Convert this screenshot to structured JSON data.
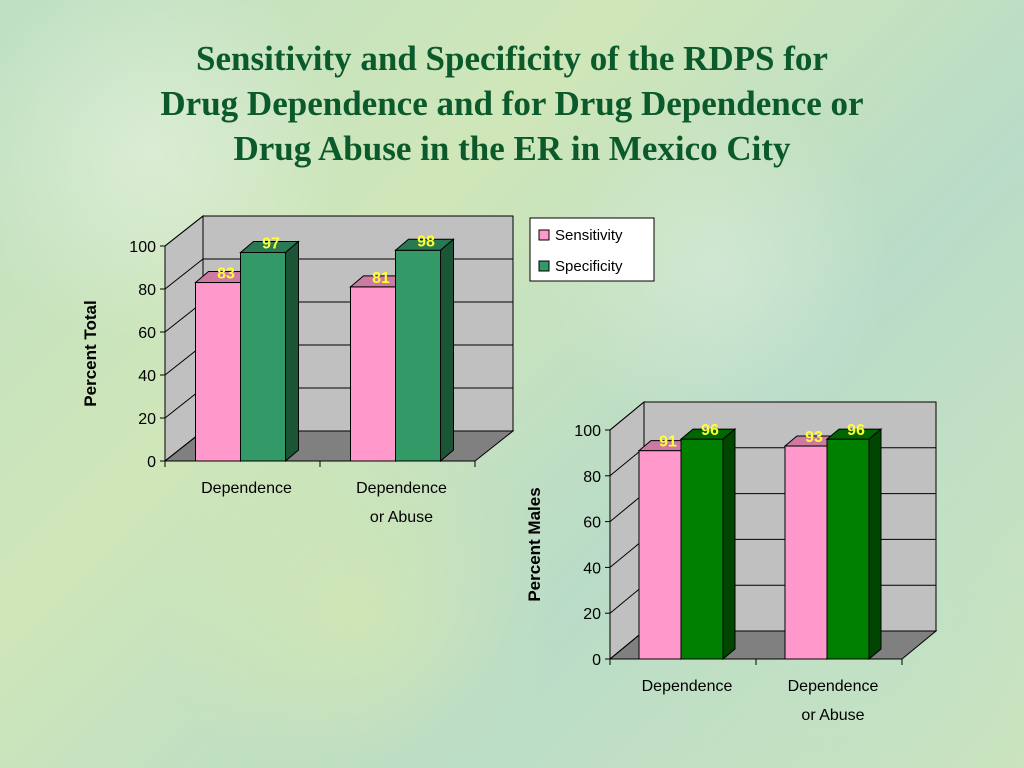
{
  "title": {
    "lines": [
      "Sensitivity and Specificity of the RDPS for",
      "Drug Dependence and for Drug Dependence or",
      "Drug Abuse in the ER in Mexico City"
    ]
  },
  "colors": {
    "sensitivity": "#ff99cc",
    "specificity_chart1": "#339966",
    "specificity_chart2": "#008000",
    "wall": "#c0c0c0",
    "floor": "#808080"
  },
  "chart_data": [
    {
      "type": "bar",
      "ylabel": "Percent Total",
      "categories": [
        [
          "Dependence"
        ],
        [
          "Dependence",
          "or Abuse"
        ]
      ],
      "yticks": [
        "0",
        "20",
        "40",
        "60",
        "80",
        "100"
      ],
      "ylim": [
        0,
        100
      ],
      "grid": true,
      "legend": "top-right",
      "series": [
        {
          "name": "Sensitivity",
          "values": [
            83,
            81
          ],
          "labels": [
            "83",
            "81"
          ]
        },
        {
          "name": "Specificity",
          "values": [
            97,
            98
          ],
          "labels": [
            "97",
            "98"
          ]
        }
      ]
    },
    {
      "type": "bar",
      "ylabel": "Percent Males",
      "categories": [
        [
          "Dependence"
        ],
        [
          "Dependence",
          "or Abuse"
        ]
      ],
      "yticks": [
        "0",
        "20",
        "40",
        "60",
        "80",
        "100"
      ],
      "ylim": [
        0,
        100
      ],
      "grid": true,
      "legend": "none",
      "series": [
        {
          "name": "Sensitivity",
          "values": [
            91,
            93
          ],
          "labels": [
            "91",
            "93"
          ]
        },
        {
          "name": "Specificity",
          "values": [
            96,
            96
          ],
          "labels": [
            "96",
            "96"
          ]
        }
      ]
    }
  ]
}
